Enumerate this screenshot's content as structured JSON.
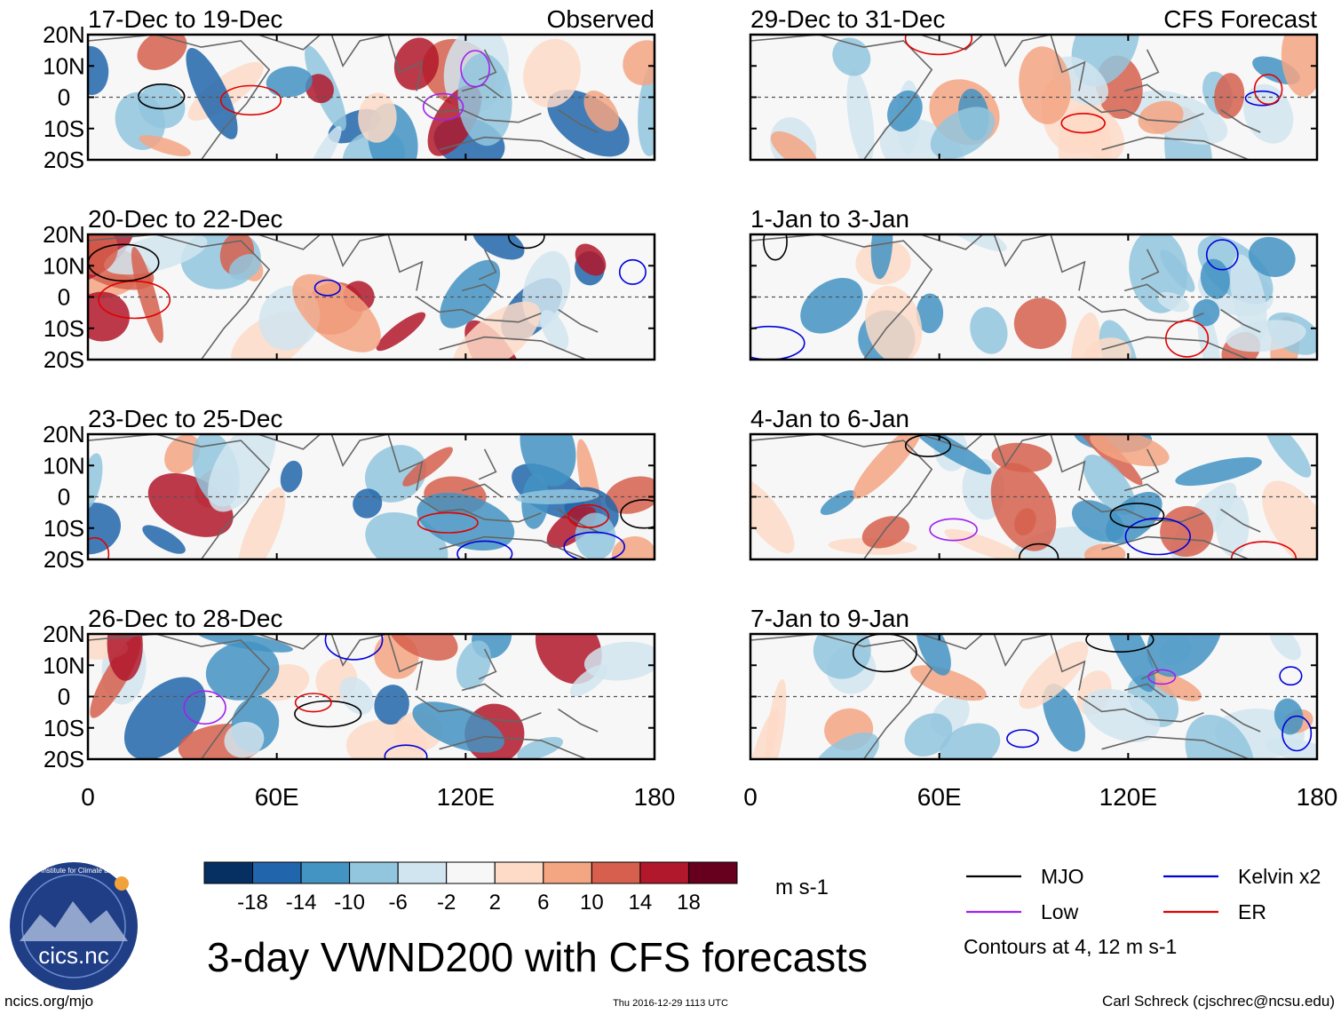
{
  "chart_data": {
    "type": "heatmap",
    "title": "3-day VWND200 with CFS forecasts",
    "variable": "VWND200",
    "units": "m s-1",
    "panel_column_labels": [
      "Observed",
      "CFS Forecast"
    ],
    "panels": [
      {
        "label": "17-Dec to 19-Dec",
        "column": "Observed"
      },
      {
        "label": "20-Dec to 22-Dec",
        "column": "Observed"
      },
      {
        "label": "23-Dec to 25-Dec",
        "column": "Observed"
      },
      {
        "label": "26-Dec to 28-Dec",
        "column": "Observed"
      },
      {
        "label": "29-Dec to 31-Dec",
        "column": "CFS Forecast"
      },
      {
        "label": "1-Jan to 3-Jan",
        "column": "CFS Forecast"
      },
      {
        "label": "4-Jan to 6-Jan",
        "column": "CFS Forecast"
      },
      {
        "label": "7-Jan to 9-Jan",
        "column": "CFS Forecast"
      }
    ],
    "y_axis": {
      "ticks": [
        "20N",
        "10N",
        "0",
        "10S",
        "20S"
      ],
      "range": [
        -20,
        20
      ]
    },
    "x_axis": {
      "ticks": [
        "0",
        "60E",
        "120E",
        "180"
      ],
      "range": [
        0,
        180
      ]
    },
    "colorbar": {
      "tick_labels": [
        "-18",
        "-14",
        "-10",
        "-6",
        "-2",
        "2",
        "6",
        "10",
        "14",
        "18"
      ],
      "colors": [
        "#053061",
        "#2166ac",
        "#4393c3",
        "#92c5de",
        "#d1e5f0",
        "#f7f7f7",
        "#fddbc7",
        "#f4a582",
        "#d6604d",
        "#b2182b",
        "#67001f"
      ]
    },
    "contours": {
      "legend": [
        {
          "name": "MJO",
          "color": "#000000"
        },
        {
          "name": "Kelvin x2",
          "color": "#0000dd"
        },
        {
          "name": "Low",
          "color": "#a020f0"
        },
        {
          "name": "ER",
          "color": "#e00000"
        }
      ],
      "note": "Contours at 4, 12 m s-1"
    }
  },
  "footer": {
    "left": "ncics.org/mjo",
    "center": "Thu 2016-12-29 1113 UTC",
    "right": "Carl Schreck (cjschrec@ncsu.edu)"
  },
  "logo": {
    "text": "cics.nc",
    "ring_text": "Cooperative Institute for Climate and Satellites"
  }
}
